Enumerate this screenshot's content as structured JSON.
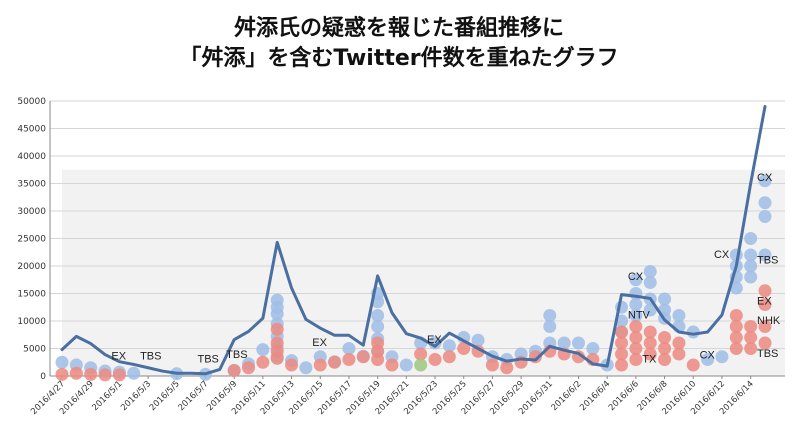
{
  "title": [
    "舛添氏の疑惑を報じた番組推移に",
    "「舛添」を含むTwitter件数を重ねたグラフ"
  ],
  "chart_data": {
    "type": "line",
    "title": "舛添氏の疑惑を報じた番組推移に「舛添」を含むTwitter件数を重ねたグラフ",
    "xlabel": "",
    "ylabel": "",
    "ylim": [
      0,
      50000
    ],
    "yticks": [
      0,
      5000,
      10000,
      15000,
      20000,
      25000,
      30000,
      35000,
      40000,
      45000,
      50000
    ],
    "ytick_labels": [
      "0",
      "5000",
      "10000",
      "15000",
      "20000",
      "25000",
      "30000",
      "35000",
      "40000",
      "45000",
      "50000"
    ],
    "x_tick_labels": [
      "2016/4/27",
      "2016/4/29",
      "2016/5/1",
      "2016/5/3",
      "2016/5/5",
      "2016/5/7",
      "2016/5/9",
      "2016/5/11",
      "2016/5/13",
      "2016/5/15",
      "2016/5/17",
      "2016/5/19",
      "2016/5/21",
      "2016/5/23",
      "2016/5/25",
      "2016/5/27",
      "2016/5/29",
      "2016/5/31",
      "2016/6/2",
      "2016/6/4",
      "2016/6/6",
      "2016/6/8",
      "2016/6/10",
      "2016/6/12",
      "2016/6/14"
    ],
    "grid": true,
    "legend": "none",
    "series": [
      {
        "type": "line",
        "color": "#4a6fa0",
        "x": [
          "2016/4/27",
          "2016/4/28",
          "2016/4/29",
          "2016/4/30",
          "2016/5/1",
          "2016/5/2",
          "2016/5/3",
          "2016/5/4",
          "2016/5/5",
          "2016/5/6",
          "2016/5/7",
          "2016/5/8",
          "2016/5/9",
          "2016/5/10",
          "2016/5/11",
          "2016/5/12",
          "2016/5/13",
          "2016/5/14",
          "2016/5/15",
          "2016/5/16",
          "2016/5/17",
          "2016/5/18",
          "2016/5/19",
          "2016/5/20",
          "2016/5/21",
          "2016/5/22",
          "2016/5/23",
          "2016/5/24",
          "2016/5/25",
          "2016/5/26",
          "2016/5/27",
          "2016/5/28",
          "2016/5/29",
          "2016/5/30",
          "2016/5/31",
          "2016/6/1",
          "2016/6/2",
          "2016/6/3",
          "2016/6/4",
          "2016/6/5",
          "2016/6/6",
          "2016/6/7",
          "2016/6/8",
          "2016/6/9",
          "2016/6/10",
          "2016/6/11",
          "2016/6/12",
          "2016/6/13",
          "2016/6/14",
          "2016/6/15"
        ],
        "values": [
          4800,
          7200,
          5900,
          3900,
          2600,
          2100,
          1500,
          900,
          500,
          500,
          400,
          1200,
          6600,
          8100,
          10500,
          24300,
          16000,
          10300,
          8700,
          7400,
          7400,
          5600,
          18200,
          11500,
          7700,
          6900,
          5400,
          7800,
          6400,
          5000,
          3600,
          2700,
          3100,
          2900,
          5400,
          4700,
          4100,
          2200,
          1800,
          14800,
          14500,
          14100,
          10200,
          8000,
          7600,
          8000,
          11100,
          20000,
          35000,
          49000
        ]
      },
      {
        "type": "scatter",
        "name": "",
        "color": "#9fbde8",
        "points": [
          [
            0,
            2500
          ],
          [
            1,
            2000
          ],
          [
            2,
            1500
          ],
          [
            3,
            900
          ],
          [
            4,
            700
          ],
          [
            5,
            500
          ],
          [
            8,
            400
          ],
          [
            10,
            300
          ],
          [
            12,
            1000
          ],
          [
            13,
            2200
          ],
          [
            14,
            4800
          ],
          [
            15,
            3500
          ],
          [
            15,
            5200
          ],
          [
            15,
            7200
          ],
          [
            15,
            9500
          ],
          [
            15,
            11300
          ],
          [
            15,
            12500
          ],
          [
            15,
            13800
          ],
          [
            16,
            2800
          ],
          [
            17,
            1500
          ],
          [
            18,
            3500
          ],
          [
            19,
            2600
          ],
          [
            20,
            5000
          ],
          [
            21,
            3600
          ],
          [
            22,
            4500
          ],
          [
            22,
            6800
          ],
          [
            22,
            9000
          ],
          [
            22,
            11000
          ],
          [
            22,
            13500
          ],
          [
            22,
            15000
          ],
          [
            23,
            3500
          ],
          [
            24,
            2000
          ],
          [
            25,
            6000
          ],
          [
            26,
            6000
          ],
          [
            27,
            5500
          ],
          [
            28,
            7000
          ],
          [
            29,
            6500
          ],
          [
            30,
            3500
          ],
          [
            31,
            3000
          ],
          [
            32,
            4000
          ],
          [
            33,
            4500
          ],
          [
            34,
            6000
          ],
          [
            34,
            9000
          ],
          [
            34,
            11000
          ],
          [
            35,
            6000
          ],
          [
            36,
            6000
          ],
          [
            37,
            5000
          ],
          [
            38,
            2000
          ],
          [
            39,
            8000
          ],
          [
            39,
            10000
          ],
          [
            39,
            12500
          ],
          [
            40,
            11000
          ],
          [
            40,
            13000
          ],
          [
            40,
            15000
          ],
          [
            40,
            17500
          ],
          [
            41,
            12000
          ],
          [
            41,
            14000
          ],
          [
            41,
            17000
          ],
          [
            41,
            19000
          ],
          [
            42,
            10500
          ],
          [
            42,
            12000
          ],
          [
            42,
            14000
          ],
          [
            43,
            9000
          ],
          [
            43,
            11000
          ],
          [
            44,
            8000
          ],
          [
            45,
            3000
          ],
          [
            46,
            3500
          ],
          [
            47,
            16000
          ],
          [
            47,
            18000
          ],
          [
            47,
            20000
          ],
          [
            47,
            22000
          ],
          [
            48,
            18000
          ],
          [
            48,
            20000
          ],
          [
            48,
            22000
          ],
          [
            48,
            25000
          ],
          [
            49,
            22000
          ],
          [
            49,
            29000
          ],
          [
            49,
            31500
          ],
          [
            49,
            35500
          ]
        ]
      },
      {
        "type": "scatter",
        "name": "",
        "color": "#ec8a80",
        "points": [
          [
            0,
            300
          ],
          [
            1,
            500
          ],
          [
            2,
            300
          ],
          [
            3,
            200
          ],
          [
            4,
            200
          ],
          [
            12,
            1000
          ],
          [
            13,
            1500
          ],
          [
            14,
            2500
          ],
          [
            15,
            3200
          ],
          [
            15,
            4500
          ],
          [
            15,
            6000
          ],
          [
            15,
            8500
          ],
          [
            16,
            2000
          ],
          [
            18,
            2000
          ],
          [
            19,
            2500
          ],
          [
            20,
            3000
          ],
          [
            21,
            3500
          ],
          [
            22,
            3000
          ],
          [
            22,
            4500
          ],
          [
            22,
            6000
          ],
          [
            23,
            2000
          ],
          [
            25,
            4000
          ],
          [
            26,
            3000
          ],
          [
            27,
            3500
          ],
          [
            28,
            5000
          ],
          [
            29,
            4500
          ],
          [
            30,
            2000
          ],
          [
            31,
            1500
          ],
          [
            32,
            2500
          ],
          [
            33,
            3500
          ],
          [
            34,
            4500
          ],
          [
            35,
            4000
          ],
          [
            36,
            3500
          ],
          [
            37,
            3000
          ],
          [
            39,
            2000
          ],
          [
            39,
            4000
          ],
          [
            39,
            6000
          ],
          [
            39,
            8000
          ],
          [
            40,
            3000
          ],
          [
            40,
            5000
          ],
          [
            40,
            7000
          ],
          [
            40,
            9000
          ],
          [
            41,
            4000
          ],
          [
            41,
            6000
          ],
          [
            41,
            8000
          ],
          [
            42,
            3000
          ],
          [
            42,
            5000
          ],
          [
            42,
            7000
          ],
          [
            43,
            4000
          ],
          [
            43,
            6000
          ],
          [
            44,
            2000
          ],
          [
            47,
            5000
          ],
          [
            47,
            7000
          ],
          [
            47,
            9000
          ],
          [
            47,
            11000
          ],
          [
            48,
            5000
          ],
          [
            48,
            7000
          ],
          [
            48,
            9000
          ],
          [
            49,
            6000
          ],
          [
            49,
            9000
          ],
          [
            49,
            13000
          ],
          [
            49,
            15500
          ]
        ]
      },
      {
        "type": "scatter",
        "name": "",
        "color": "#9cc87f",
        "points": [
          [
            25,
            2000
          ]
        ]
      }
    ],
    "annotations": [
      {
        "text": "EX",
        "x": "2016/5/1",
        "y": 3000
      },
      {
        "text": "TBS",
        "x": "2016/5/3",
        "y": 3000
      },
      {
        "text": "TBS",
        "x": "2016/5/7",
        "y": 2500
      },
      {
        "text": "TBS",
        "x": "2016/5/9",
        "y": 3300
      },
      {
        "text": "EX",
        "x": "2016/5/15",
        "y": 5500
      },
      {
        "text": "EX",
        "x": "2016/5/23",
        "y": 6000
      },
      {
        "text": "CX",
        "x": "2016/6/6",
        "y": 17500
      },
      {
        "text": "NTV",
        "x": "2016/6/6",
        "y": 10500
      },
      {
        "text": "TX",
        "x": "2016/6/7",
        "y": 2500
      },
      {
        "text": "CX",
        "x": "2016/6/11",
        "y": 3200
      },
      {
        "text": "CX",
        "x": "2016/6/12",
        "y": 21500
      },
      {
        "text": "CX",
        "x": "2016/6/15",
        "y": 35500
      },
      {
        "text": "TBS",
        "x": "2016/6/15",
        "y": 20500
      },
      {
        "text": "EX",
        "x": "2016/6/15",
        "y": 13000
      },
      {
        "text": "NHK",
        "x": "2016/6/15",
        "y": 9500
      },
      {
        "text": "TBS",
        "x": "2016/6/15",
        "y": 3500
      }
    ]
  }
}
